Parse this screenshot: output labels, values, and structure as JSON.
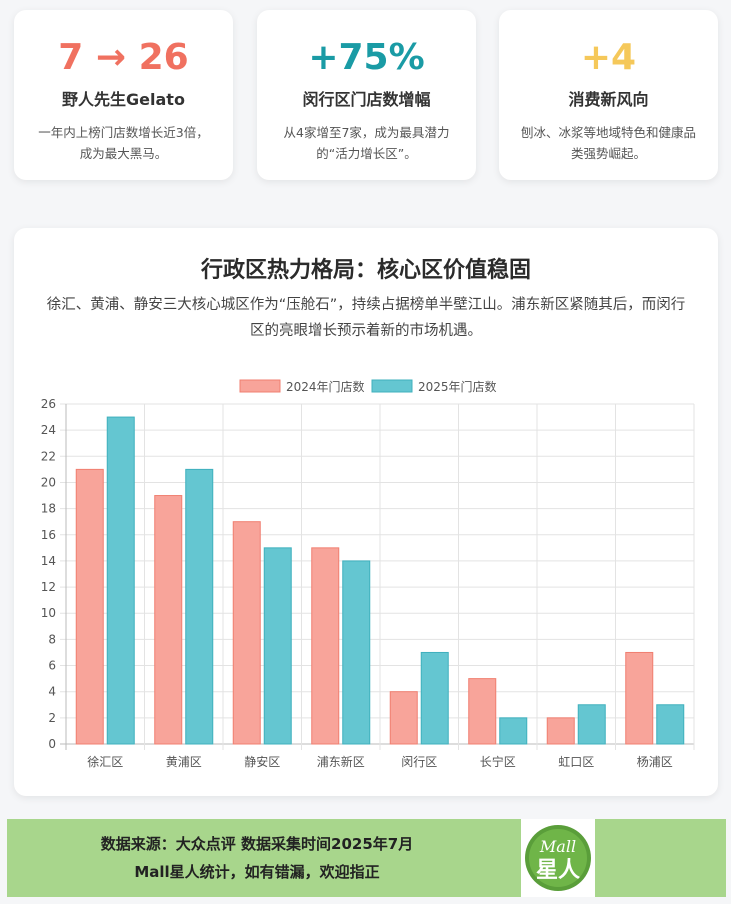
{
  "stats": [
    {
      "value": "7 → 26",
      "title": "野人先生Gelato",
      "desc": "一年内上榜门店数增长近3倍，成为最大黑马。",
      "color": "#f07160"
    },
    {
      "value": "+75%",
      "title": "闵行区门店数增幅",
      "desc": "从4家增至7家，成为最具潜力的“活力增长区”。",
      "color": "#1a9ba5"
    },
    {
      "value": "+4",
      "title": "消费新风向",
      "desc": "刨冰、冰浆等地域特色和健康品类强势崛起。",
      "color": "#f5c85a"
    }
  ],
  "chart_section": {
    "title": "行政区热力格局：核心区价值稳固",
    "subtitle": "徐汇、黄浦、静安三大核心城区作为“压舱石”，持续占据榜单半壁江山。浦东新区紧随其后，而闵行区的亮眼增长预示着新的市场机遇。"
  },
  "chart_data": {
    "type": "bar",
    "categories": [
      "徐汇区",
      "黄浦区",
      "静安区",
      "浦东新区",
      "闵行区",
      "长宁区",
      "虹口区",
      "杨浦区"
    ],
    "series": [
      {
        "name": "2024年门店数",
        "values": [
          21,
          19,
          17,
          15,
          4,
          5,
          2,
          7
        ],
        "color": "#f8a49a"
      },
      {
        "name": "2025年门店数",
        "values": [
          25,
          21,
          15,
          14,
          7,
          2,
          3,
          3
        ],
        "color": "#64c6d1"
      }
    ],
    "ylim": [
      0,
      26
    ],
    "yticks": [
      0,
      2,
      4,
      6,
      8,
      10,
      12,
      14,
      16,
      18,
      20,
      22,
      24,
      26
    ],
    "legend": "top-center",
    "grid": true
  },
  "footer": {
    "line1": "数据来源：大众点评  数据采集时间2025年7月",
    "line2": "Mall星人统计，如有错漏，欢迎指正",
    "logo_text_top": "Mall",
    "logo_text_bottom": "星人"
  }
}
